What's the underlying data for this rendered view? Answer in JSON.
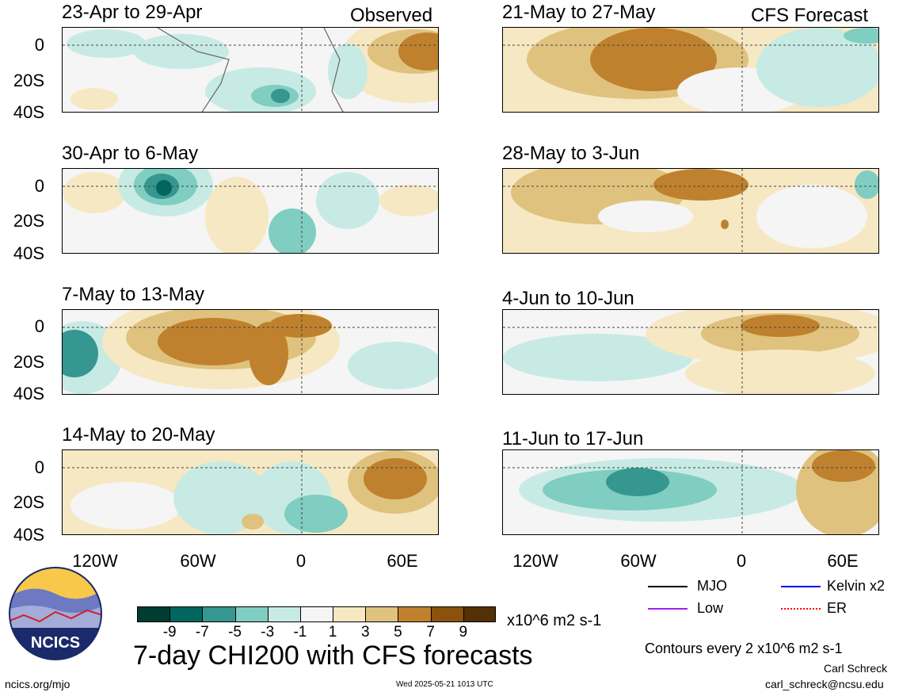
{
  "header": {
    "observed_label": "Observed",
    "forecast_label": "CFS Forecast"
  },
  "panels": [
    {
      "title": "23-Apr to 29-Apr"
    },
    {
      "title": "30-Apr to 6-May"
    },
    {
      "title": "7-May to 13-May"
    },
    {
      "title": "14-May to 20-May"
    },
    {
      "title": "21-May to 27-May"
    },
    {
      "title": "28-May to 3-Jun"
    },
    {
      "title": "4-Jun to 10-Jun"
    },
    {
      "title": "11-Jun to 17-Jun"
    }
  ],
  "axes": {
    "y_ticks": [
      "0",
      "20S",
      "40S"
    ],
    "x_ticks": [
      "120W",
      "60W",
      "0",
      "60E"
    ]
  },
  "colorbar": {
    "colors": [
      "#003c30",
      "#01665e",
      "#35978f",
      "#80cdc1",
      "#c7eae5",
      "#f5f5f5",
      "#f6e8c3",
      "#dfc27d",
      "#bf812d",
      "#8c510a",
      "#543005"
    ],
    "labels": [
      "-9",
      "-7",
      "-5",
      "-3",
      "-1",
      "1",
      "3",
      "5",
      "7",
      "9"
    ],
    "units": "x10^6 m2 s-1"
  },
  "legend": [
    {
      "label": "MJO",
      "color": "#000000"
    },
    {
      "label": "Kelvin x2",
      "color": "#0000ff"
    },
    {
      "label": "Low",
      "color": "#a020f0"
    },
    {
      "label": "ER",
      "color": "#ff0000"
    }
  ],
  "logo_text": "NCICS",
  "main_title": "7-day CHI200 with CFS forecasts",
  "contour_note": "Contours every 2 x10^6 m2 s-1",
  "author": "Carl Schreck",
  "email": "carl_schreck@ncsu.edu",
  "website": "ncics.org/mjo",
  "timestamp": "Wed 2025-05-21 1013 UTC"
}
